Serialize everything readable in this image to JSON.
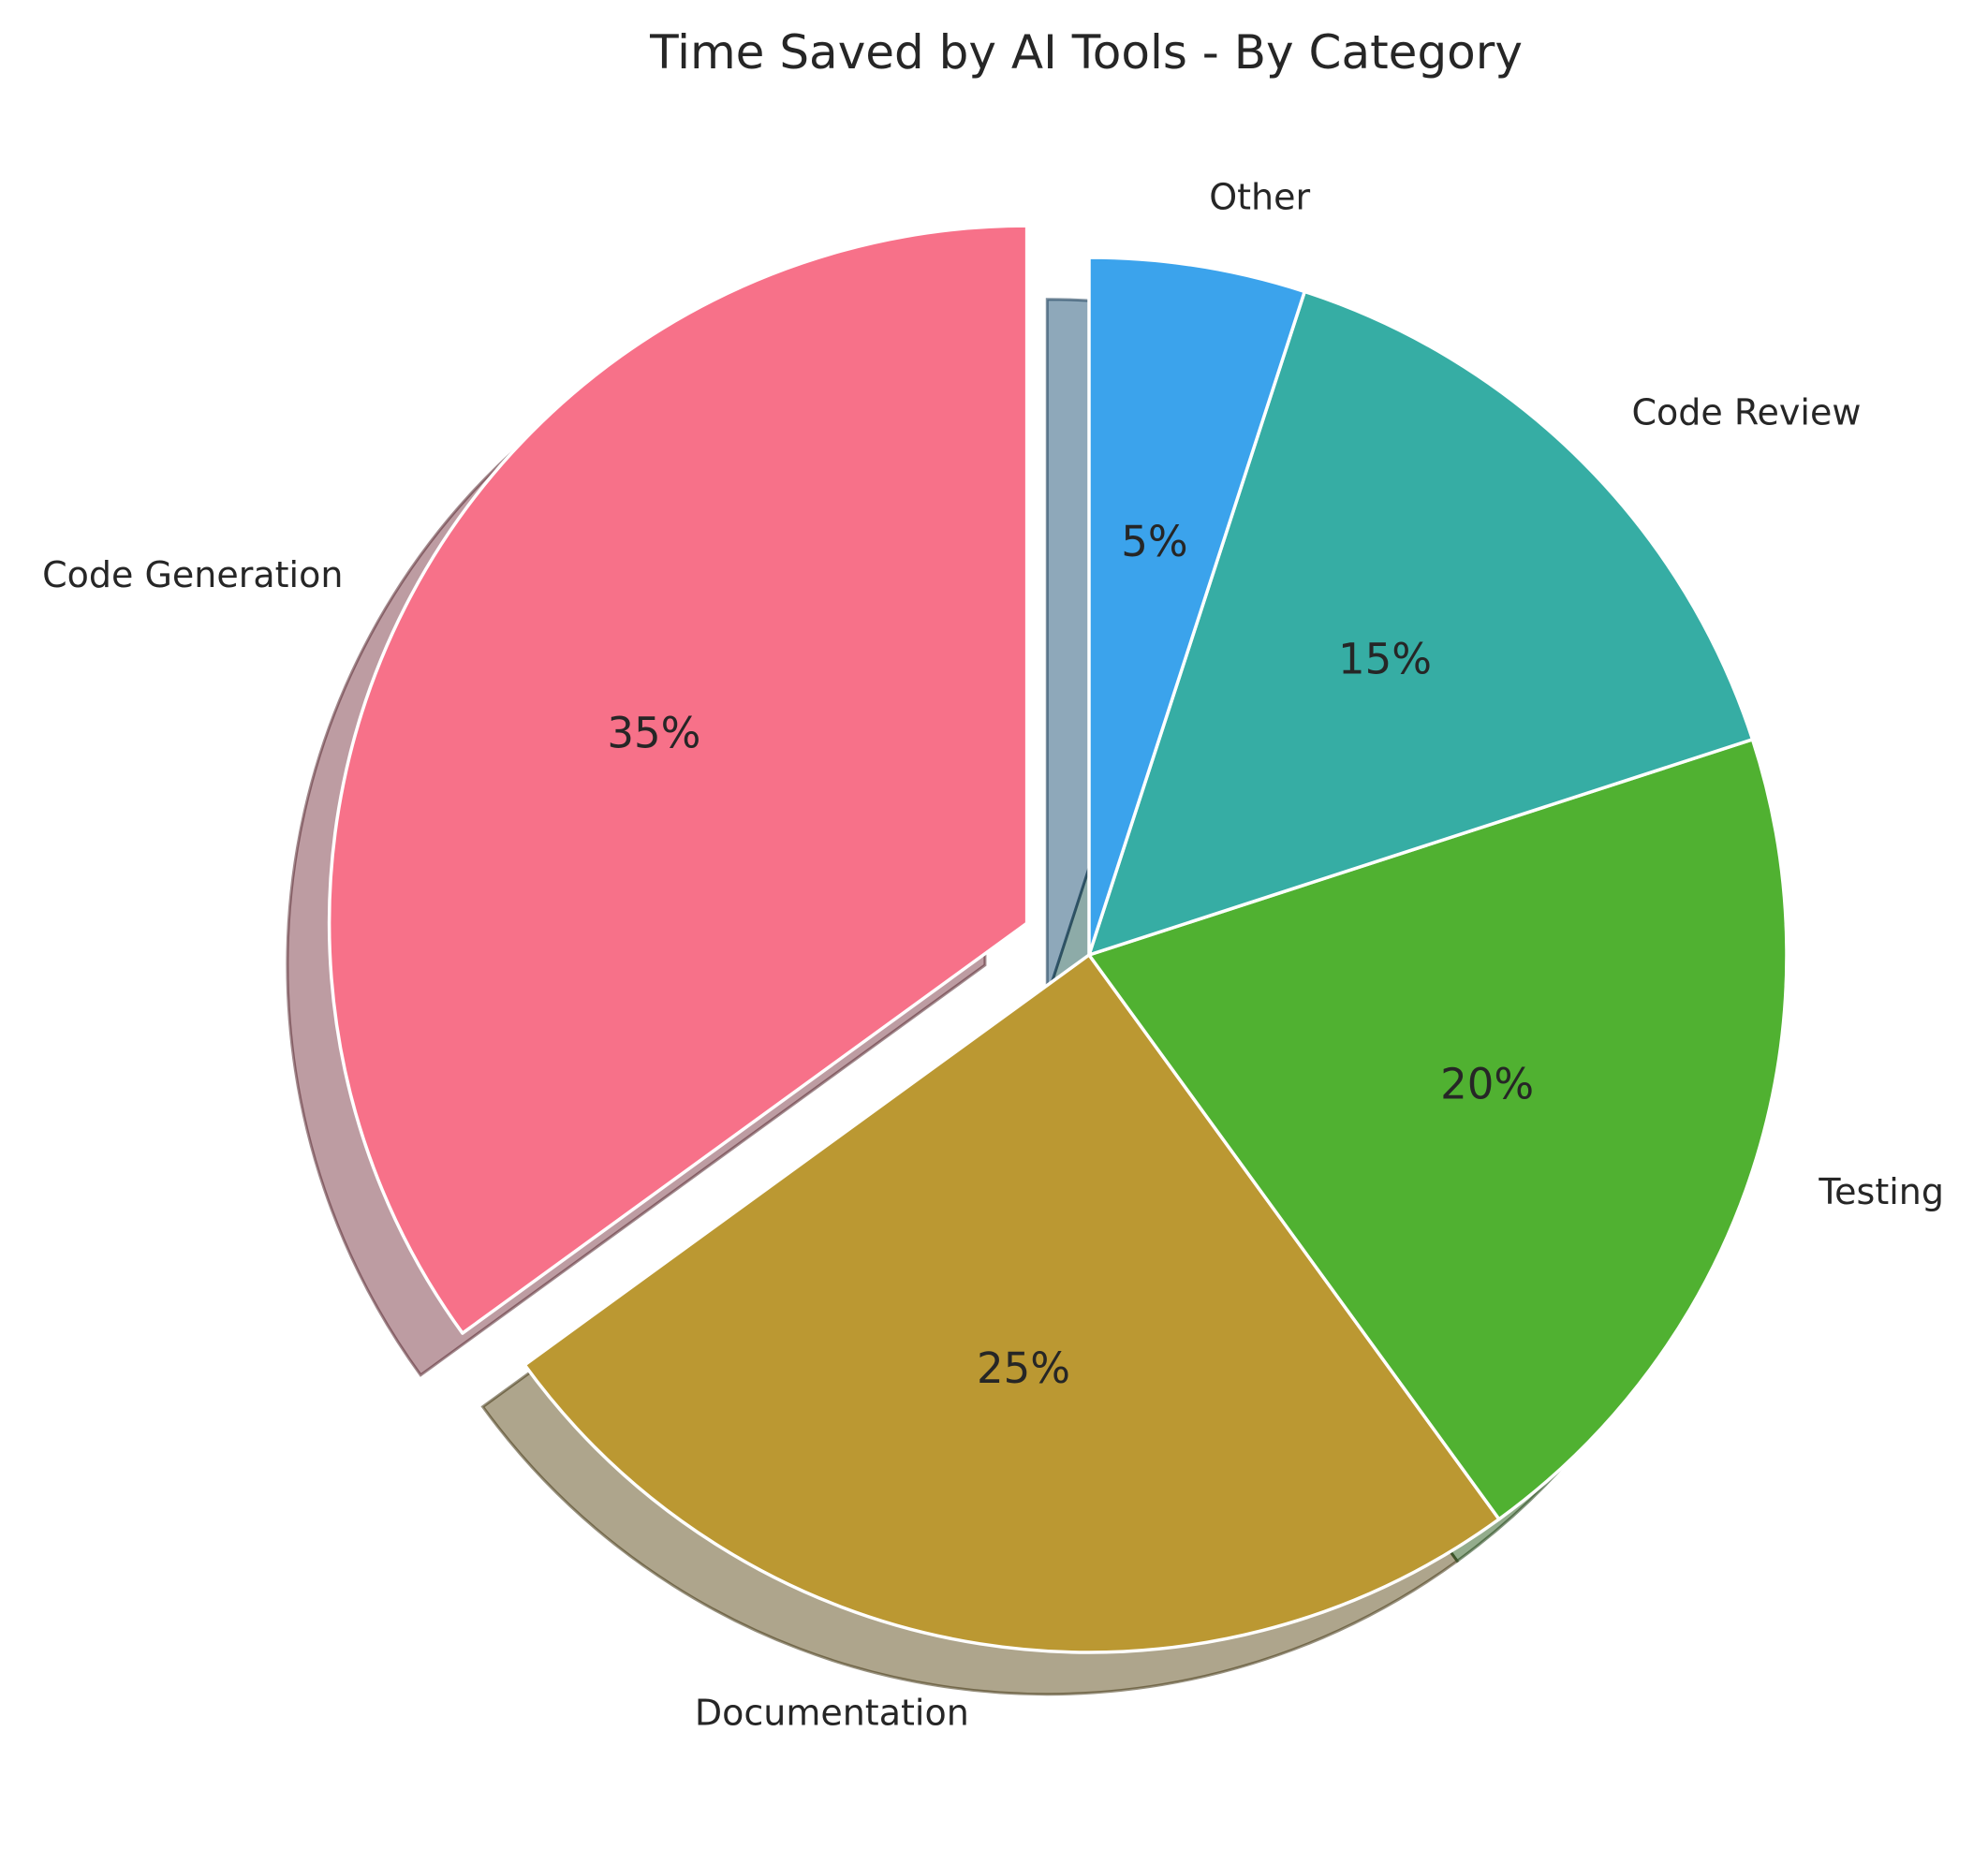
{
  "chart_data": {
    "type": "pie",
    "title": "Time Saved by AI Tools - By Category",
    "categories": [
      "Code Generation",
      "Documentation",
      "Testing",
      "Code Review",
      "Other"
    ],
    "values": [
      35,
      25,
      20,
      15,
      5
    ],
    "value_labels": [
      "35%",
      "25%",
      "20%",
      "15%",
      "5%"
    ],
    "colors": [
      "#f77189",
      "#bb9832",
      "#50b131",
      "#36ada4",
      "#3ba3ec"
    ],
    "exploded": [
      "Code Generation"
    ],
    "start_angle_deg": 90,
    "direction": "counterclockwise",
    "shadow": true,
    "legend": "none"
  }
}
